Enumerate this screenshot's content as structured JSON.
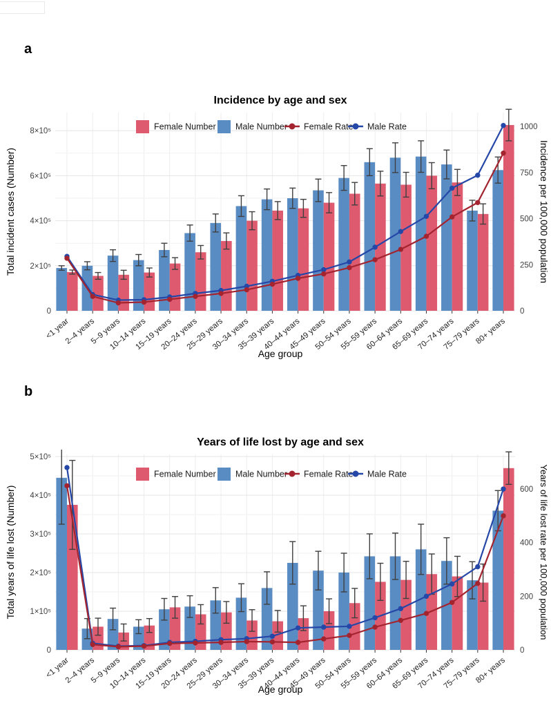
{
  "page": {
    "panel_a_label": "a",
    "panel_b_label": "b"
  },
  "colors": {
    "female_bar": "#de5a6f",
    "male_bar": "#5a8cc4",
    "female_rate": "#a3242f",
    "male_rate": "#2547a8",
    "error_bar": "#3f3f3f",
    "grid_major": "#e4e4e4",
    "grid_minor": "#f2f2f2",
    "grid_vertical": "#ededed"
  },
  "chart_data": [
    {
      "id": "incidence",
      "type": "bar+line",
      "title": "Incidence by age and sex",
      "xlabel": "Age group",
      "ylabel_left": "Total incident cases (Number)",
      "ylabel_right": "Incidence per 100,000 population",
      "categories": [
        "<1 year",
        "2–4 years",
        "5–9 years",
        "10–14 years",
        "15–19 years",
        "20–24 years",
        "25–29 years",
        "30–34 years",
        "35–39 years",
        "40–44 years",
        "45–49 years",
        "50–54 years",
        "55–59 years",
        "60–64 years",
        "65–69 years",
        "70–74 years",
        "75–79 years",
        "80+ years"
      ],
      "left_axis": {
        "tick_labels": [
          "0",
          "2×10⁵",
          "4×10⁵",
          "6×10⁵",
          "8×10⁵"
        ],
        "tick_values": [
          0,
          200000,
          400000,
          600000,
          800000
        ]
      },
      "right_axis": {
        "tick_labels": [
          "0",
          "250",
          "500",
          "750",
          "1000"
        ],
        "tick_values": [
          0,
          250,
          500,
          750,
          1000
        ]
      },
      "legend": [
        {
          "label": "Female Number",
          "glyph": "square",
          "color_key": "female_bar"
        },
        {
          "label": "Male Number",
          "glyph": "square",
          "color_key": "male_bar"
        },
        {
          "label": "Female Rate",
          "glyph": "line",
          "color_key": "female_rate"
        },
        {
          "label": "Male Rate",
          "glyph": "line",
          "color_key": "male_rate"
        }
      ],
      "series": [
        {
          "name": "Male Number",
          "type": "bar",
          "axis": "left",
          "color_key": "male_bar",
          "values": [
            190000,
            200000,
            245000,
            225000,
            270000,
            345000,
            390000,
            465000,
            495000,
            500000,
            535000,
            590000,
            660000,
            680000,
            685000,
            650000,
            445000,
            625000
          ],
          "errors": [
            10000,
            18000,
            26000,
            25000,
            30000,
            36000,
            40000,
            46000,
            46000,
            45000,
            50000,
            55000,
            60000,
            66000,
            70000,
            64000,
            46000,
            58000
          ]
        },
        {
          "name": "Female Number",
          "type": "bar",
          "axis": "left",
          "color_key": "female_bar",
          "values": [
            172000,
            155000,
            160000,
            170000,
            210000,
            260000,
            310000,
            400000,
            445000,
            455000,
            480000,
            520000,
            565000,
            560000,
            600000,
            570000,
            430000,
            825000
          ],
          "errors": [
            9000,
            15000,
            20000,
            20000,
            26000,
            30000,
            36000,
            40000,
            40000,
            40000,
            45000,
            50000,
            55000,
            55000,
            58000,
            58000,
            45000,
            70000
          ]
        },
        {
          "name": "Male Rate",
          "type": "line",
          "axis": "right",
          "color_key": "male_rate",
          "values": [
            295,
            88,
            58,
            60,
            75,
            94,
            110,
            133,
            160,
            192,
            223,
            265,
            345,
            430,
            512,
            665,
            735,
            1005
          ]
        },
        {
          "name": "Female Rate",
          "type": "line",
          "axis": "right",
          "color_key": "female_rate",
          "values": [
            285,
            78,
            43,
            47,
            62,
            78,
            94,
            114,
            144,
            176,
            200,
            234,
            277,
            333,
            404,
            509,
            587,
            855
          ]
        }
      ]
    },
    {
      "id": "yll",
      "type": "bar+line",
      "title": "Years of life lost by age and sex",
      "xlabel": "Age group",
      "ylabel_left": "Total years of life lost (Number)",
      "ylabel_right": "Years of life lost rate per 100,000 population",
      "categories": [
        "<1 year",
        "2–4 years",
        "5–9 years",
        "10–14 years",
        "15–19 years",
        "20–24 years",
        "25–29 years",
        "30–34 years",
        "35–39 years",
        "40–44 years",
        "45–49 years",
        "50–54 years",
        "55–59 years",
        "60–64 years",
        "65–69 years",
        "70–74 years",
        "75–79 years",
        "80+ years"
      ],
      "left_axis": {
        "tick_labels": [
          "0",
          "1×10⁵",
          "2×10⁵",
          "3×10⁵",
          "4×10⁵",
          "5×10⁵"
        ],
        "tick_values": [
          0,
          100000,
          200000,
          300000,
          400000,
          500000
        ]
      },
      "right_axis": {
        "tick_labels": [
          "0",
          "200",
          "400",
          "600"
        ],
        "tick_values": [
          0,
          200,
          400,
          600
        ]
      },
      "legend": [
        {
          "label": "Female Number",
          "glyph": "square",
          "color_key": "female_bar"
        },
        {
          "label": "Male Number",
          "glyph": "square",
          "color_key": "male_bar"
        },
        {
          "label": "Female Rate",
          "glyph": "line",
          "color_key": "female_rate"
        },
        {
          "label": "Male Rate",
          "glyph": "line",
          "color_key": "male_rate"
        }
      ],
      "series": [
        {
          "name": "Male Number",
          "type": "bar",
          "axis": "left",
          "color_key": "male_bar",
          "values": [
            445000,
            55000,
            80000,
            60000,
            105000,
            112000,
            128000,
            135000,
            160000,
            225000,
            205000,
            200000,
            242000,
            242000,
            260000,
            230000,
            180000,
            360000
          ],
          "errors": [
            120000,
            26000,
            28000,
            18000,
            28000,
            28000,
            33000,
            36000,
            42000,
            55000,
            50000,
            50000,
            58000,
            60000,
            65000,
            60000,
            48000,
            52000
          ]
        },
        {
          "name": "Female Number",
          "type": "bar",
          "axis": "left",
          "color_key": "female_bar",
          "values": [
            375000,
            60000,
            45000,
            63000,
            110000,
            92000,
            97000,
            76000,
            74000,
            82000,
            100000,
            121000,
            176000,
            181000,
            196000,
            190000,
            174000,
            470000
          ],
          "errors": [
            115000,
            22000,
            22000,
            18000,
            28000,
            25000,
            28000,
            28000,
            28000,
            32000,
            32000,
            38000,
            48000,
            48000,
            52000,
            52000,
            48000,
            42000
          ]
        },
        {
          "name": "Male Rate",
          "type": "line",
          "axis": "right",
          "color_key": "male_rate",
          "values": [
            680,
            25,
            14,
            16,
            28,
            32,
            38,
            42,
            51,
            82,
            85,
            88,
            120,
            154,
            200,
            246,
            310,
            600
          ]
        },
        {
          "name": "Female Rate",
          "type": "line",
          "axis": "right",
          "color_key": "female_rate",
          "values": [
            612,
            20,
            12,
            14,
            24,
            26,
            28,
            31,
            30,
            28,
            41,
            54,
            85,
            110,
            136,
            177,
            248,
            500
          ]
        }
      ]
    }
  ]
}
